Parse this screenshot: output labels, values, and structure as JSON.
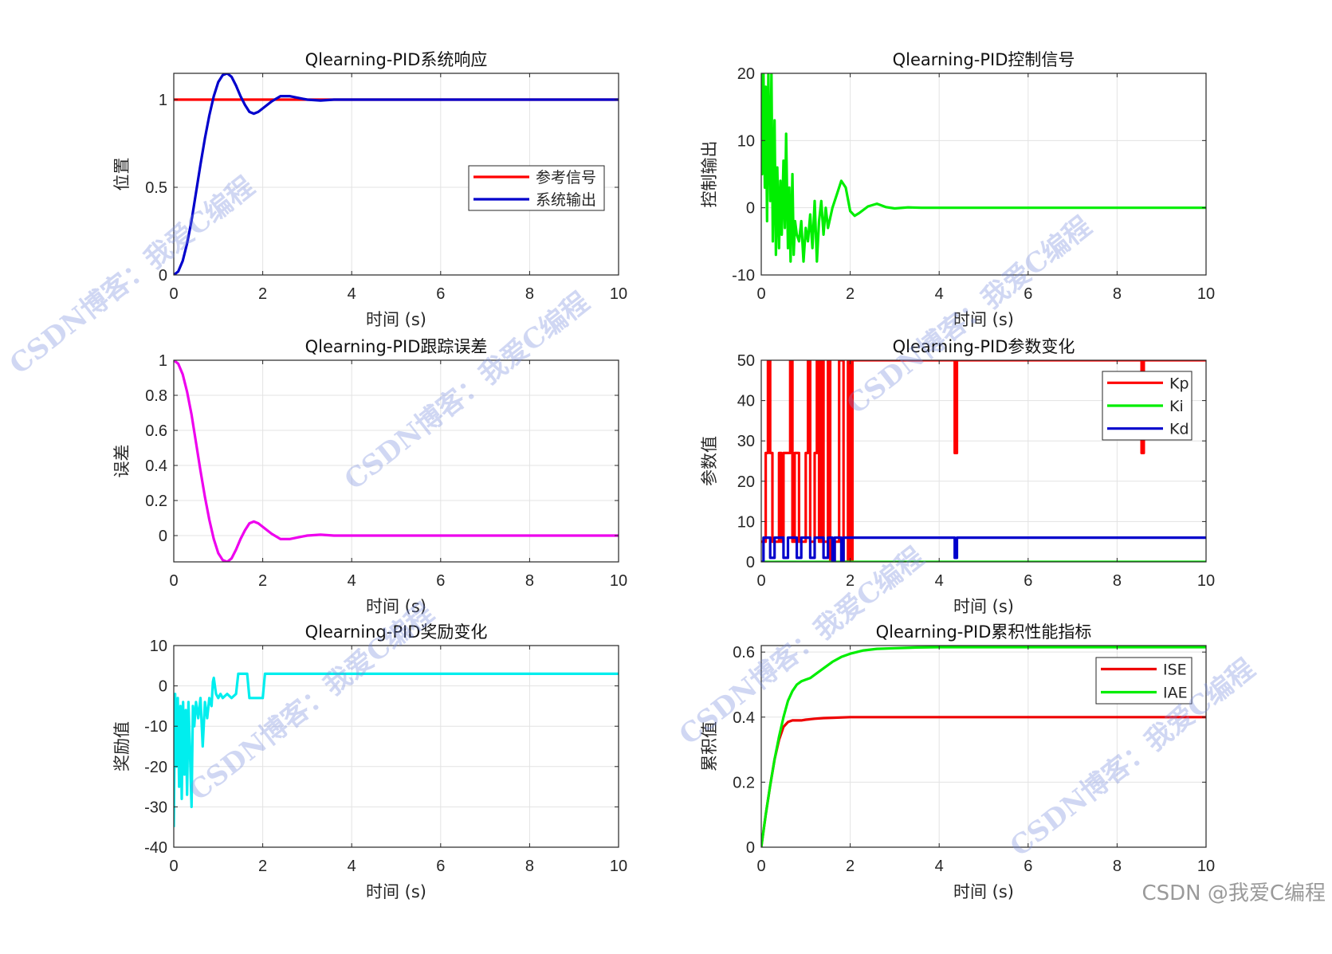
{
  "chart_data": [
    {
      "id": "response",
      "type": "line",
      "title": "Qlearning-PID系统响应",
      "xlabel": "时间 (s)",
      "ylabel": "位置",
      "xlim": [
        0,
        10
      ],
      "ylim": [
        0,
        1.15
      ],
      "xticks": [
        0,
        2,
        4,
        6,
        8,
        10
      ],
      "xtick_labels": [
        "0",
        "2",
        "4",
        "6",
        "8",
        "10"
      ],
      "yticks": [
        0,
        0.5,
        1
      ],
      "ytick_labels": [
        "0",
        "0.5",
        "1"
      ],
      "grid": true,
      "legend": {
        "placement": "center-right",
        "entries": [
          "参考信号",
          "系统输出"
        ]
      },
      "series": [
        {
          "name": "参考信号",
          "color": "#ff0000",
          "x": [
            0,
            10
          ],
          "y": [
            1,
            1
          ]
        },
        {
          "name": "系统输出",
          "color": "#0000cc",
          "x": [
            0,
            0.1,
            0.2,
            0.3,
            0.4,
            0.5,
            0.6,
            0.7,
            0.8,
            0.9,
            1.0,
            1.1,
            1.2,
            1.3,
            1.4,
            1.5,
            1.6,
            1.7,
            1.8,
            1.9,
            2.0,
            2.2,
            2.4,
            2.6,
            2.8,
            3.0,
            3.3,
            3.6,
            4.0,
            5,
            6,
            7,
            8,
            9,
            10
          ],
          "y": [
            0,
            0.02,
            0.08,
            0.18,
            0.31,
            0.47,
            0.63,
            0.78,
            0.91,
            1.02,
            1.1,
            1.14,
            1.15,
            1.13,
            1.08,
            1.02,
            0.97,
            0.93,
            0.92,
            0.93,
            0.95,
            0.99,
            1.02,
            1.02,
            1.01,
            1.0,
            0.995,
            1.0,
            1.0,
            1.0,
            1.0,
            1.0,
            1.0,
            1.0,
            1.0
          ]
        }
      ]
    },
    {
      "id": "control",
      "type": "line",
      "title": "Qlearning-PID控制信号",
      "xlabel": "时间 (s)",
      "ylabel": "控制输出",
      "xlim": [
        0,
        10
      ],
      "ylim": [
        -10,
        20
      ],
      "xticks": [
        0,
        2,
        4,
        6,
        8,
        10
      ],
      "xtick_labels": [
        "0",
        "2",
        "4",
        "6",
        "8",
        "10"
      ],
      "yticks": [
        -10,
        0,
        10,
        20
      ],
      "ytick_labels": [
        "-10",
        "0",
        "10",
        "20"
      ],
      "grid": true,
      "series": [
        {
          "name": "控制输出",
          "color": "#00ee00",
          "x": [
            0,
            0.02,
            0.05,
            0.08,
            0.1,
            0.13,
            0.16,
            0.2,
            0.23,
            0.26,
            0.3,
            0.33,
            0.36,
            0.4,
            0.43,
            0.46,
            0.5,
            0.53,
            0.56,
            0.6,
            0.63,
            0.66,
            0.7,
            0.73,
            0.76,
            0.8,
            0.85,
            0.9,
            0.95,
            1.0,
            1.05,
            1.1,
            1.15,
            1.2,
            1.25,
            1.3,
            1.35,
            1.4,
            1.45,
            1.5,
            1.6,
            1.7,
            1.8,
            1.9,
            2.0,
            2.1,
            2.2,
            2.4,
            2.6,
            2.8,
            3.0,
            3.3,
            3.6,
            4,
            5,
            6,
            7,
            8,
            9,
            10
          ],
          "y": [
            20,
            5,
            20,
            3,
            18,
            -2,
            20,
            1,
            20,
            -5,
            13,
            -7,
            6,
            -6,
            4,
            -4,
            7,
            -3,
            11,
            -6,
            3,
            -8,
            5,
            -7,
            -2,
            -4,
            -5,
            -2,
            -8,
            -3,
            -5,
            -1,
            -6,
            1,
            -8,
            -2,
            1,
            -4,
            0,
            -3,
            0,
            2,
            4,
            3,
            -0.5,
            -1.2,
            -0.8,
            0.2,
            0.6,
            0.1,
            -0.1,
            0.05,
            0,
            0,
            0,
            0,
            0,
            0,
            0,
            0
          ]
        }
      ]
    },
    {
      "id": "error",
      "type": "line",
      "title": "Qlearning-PID跟踪误差",
      "xlabel": "时间 (s)",
      "ylabel": "误差",
      "xlim": [
        0,
        10
      ],
      "ylim": [
        -0.15,
        1
      ],
      "xticks": [
        0,
        2,
        4,
        6,
        8,
        10
      ],
      "xtick_labels": [
        "0",
        "2",
        "4",
        "6",
        "8",
        "10"
      ],
      "yticks": [
        0,
        0.2,
        0.4,
        0.6,
        0.8,
        1
      ],
      "ytick_labels": [
        "0",
        "0.2",
        "0.4",
        "0.6",
        "0.8",
        "1"
      ],
      "grid": true,
      "series": [
        {
          "name": "误差",
          "color": "#ee00ee",
          "x": [
            0,
            0.1,
            0.2,
            0.3,
            0.4,
            0.5,
            0.6,
            0.7,
            0.8,
            0.9,
            1.0,
            1.1,
            1.2,
            1.3,
            1.4,
            1.5,
            1.6,
            1.7,
            1.8,
            1.9,
            2.0,
            2.2,
            2.4,
            2.6,
            2.8,
            3.0,
            3.3,
            3.6,
            4.0,
            5,
            6,
            7,
            8,
            9,
            10
          ],
          "y": [
            1,
            0.98,
            0.92,
            0.82,
            0.69,
            0.53,
            0.37,
            0.22,
            0.09,
            -0.02,
            -0.1,
            -0.14,
            -0.15,
            -0.13,
            -0.08,
            -0.02,
            0.03,
            0.07,
            0.08,
            0.07,
            0.05,
            0.01,
            -0.02,
            -0.02,
            -0.01,
            0.0,
            0.005,
            0.0,
            0.0,
            0.0,
            0.0,
            0.0,
            0.0,
            0.0,
            0.0
          ]
        }
      ]
    },
    {
      "id": "params",
      "type": "line",
      "title": "Qlearning-PID参数变化",
      "xlabel": "时间 (s)",
      "ylabel": "参数值",
      "xlim": [
        0,
        10
      ],
      "ylim": [
        0,
        50
      ],
      "xticks": [
        0,
        2,
        4,
        6,
        8,
        10
      ],
      "xtick_labels": [
        "0",
        "2",
        "4",
        "6",
        "8",
        "10"
      ],
      "yticks": [
        0,
        10,
        20,
        30,
        40,
        50
      ],
      "ytick_labels": [
        "0",
        "10",
        "20",
        "30",
        "40",
        "50"
      ],
      "grid": true,
      "legend": {
        "placement": "top-right",
        "entries": [
          "Kp",
          "Ki",
          "Kd"
        ]
      },
      "series": [
        {
          "name": "Kp",
          "color": "#ff0000",
          "x": [
            0,
            0.1,
            0.1,
            0.15,
            0.15,
            0.2,
            0.2,
            0.25,
            0.25,
            0.4,
            0.4,
            0.45,
            0.45,
            0.5,
            0.5,
            0.65,
            0.65,
            0.7,
            0.7,
            0.75,
            0.75,
            0.85,
            0.85,
            1.0,
            1.0,
            1.05,
            1.05,
            1.1,
            1.1,
            1.2,
            1.2,
            1.25,
            1.25,
            1.3,
            1.3,
            1.35,
            1.35,
            1.4,
            1.4,
            1.5,
            1.5,
            1.55,
            1.55,
            1.65,
            1.65,
            1.75,
            1.75,
            1.85,
            1.85,
            1.95,
            1.95,
            2.0,
            2.0,
            2.05,
            2.05,
            4.35,
            4.35,
            4.4,
            4.4,
            8.55,
            8.55,
            8.6,
            8.6,
            10
          ],
          "y": [
            5,
            5,
            27,
            27,
            50,
            50,
            27,
            27,
            5,
            5,
            27,
            27,
            5,
            5,
            27,
            27,
            50,
            50,
            5,
            5,
            27,
            27,
            5,
            5,
            27,
            27,
            50,
            50,
            5,
            5,
            27,
            27,
            50,
            50,
            5,
            5,
            50,
            50,
            5,
            5,
            50,
            50,
            0,
            0,
            5,
            5,
            50,
            50,
            0,
            0,
            50,
            50,
            0,
            0,
            50,
            50,
            27,
            27,
            50,
            50,
            27,
            27,
            50,
            50
          ]
        },
        {
          "name": "Ki",
          "color": "#00ee00",
          "x": [
            0,
            10
          ],
          "y": [
            0,
            0
          ]
        },
        {
          "name": "Kd",
          "color": "#0000cc",
          "x": [
            0,
            0.05,
            0.05,
            0.2,
            0.2,
            0.3,
            0.3,
            0.5,
            0.5,
            0.6,
            0.6,
            0.8,
            0.8,
            0.9,
            0.9,
            1.1,
            1.1,
            1.2,
            1.2,
            1.4,
            1.4,
            1.5,
            1.5,
            1.6,
            1.6,
            1.65,
            1.65,
            1.8,
            1.8,
            1.85,
            1.85,
            2.0,
            2.0,
            4.35,
            4.35,
            4.4,
            4.4,
            10
          ],
          "y": [
            0,
            0,
            6,
            6,
            1,
            1,
            6,
            6,
            1,
            1,
            6,
            6,
            1,
            1,
            6,
            6,
            1,
            1,
            6,
            6,
            1,
            1,
            6,
            6,
            0,
            0,
            6,
            6,
            0,
            0,
            6,
            6,
            6,
            6,
            1,
            1,
            6,
            6
          ]
        }
      ]
    },
    {
      "id": "reward",
      "type": "line",
      "title": "Qlearning-PID奖励变化",
      "xlabel": "时间 (s)",
      "ylabel": "奖励值",
      "xlim": [
        0,
        10
      ],
      "ylim": [
        -40,
        10
      ],
      "xticks": [
        0,
        2,
        4,
        6,
        8,
        10
      ],
      "xtick_labels": [
        "0",
        "2",
        "4",
        "6",
        "8",
        "10"
      ],
      "yticks": [
        -40,
        -30,
        -20,
        -10,
        0,
        10
      ],
      "ytick_labels": [
        "-40",
        "-30",
        "-20",
        "-10",
        "0",
        "10"
      ],
      "grid": true,
      "series": [
        {
          "name": "奖励值",
          "color": "#00eeee",
          "x": [
            0,
            0.03,
            0.06,
            0.09,
            0.12,
            0.15,
            0.18,
            0.21,
            0.24,
            0.27,
            0.3,
            0.33,
            0.36,
            0.4,
            0.43,
            0.46,
            0.5,
            0.55,
            0.6,
            0.65,
            0.7,
            0.75,
            0.8,
            0.85,
            0.88,
            0.9,
            0.95,
            1.0,
            1.05,
            1.1,
            1.2,
            1.3,
            1.4,
            1.45,
            1.5,
            1.55,
            1.6,
            1.65,
            1.7,
            1.75,
            1.8,
            2.0,
            2.05,
            2.1,
            10
          ],
          "y": [
            -35,
            -2,
            -20,
            -3,
            -25,
            -5,
            -28,
            -4,
            -22,
            -6,
            -27,
            -4,
            -15,
            -30,
            -5,
            -10,
            -4,
            -8,
            -3,
            -15,
            -4,
            -8,
            -3,
            -5,
            1,
            2,
            -2,
            -3,
            -2,
            -3,
            -2,
            -3,
            -2,
            3,
            3,
            3,
            3,
            3,
            -3,
            -3,
            -3,
            -3,
            3,
            3,
            3
          ]
        }
      ]
    },
    {
      "id": "cumulative",
      "type": "line",
      "title": "Qlearning-PID累积性能指标",
      "xlabel": "时间 (s)",
      "ylabel": "累积值",
      "xlim": [
        0,
        10
      ],
      "ylim": [
        0,
        0.62
      ],
      "xticks": [
        0,
        2,
        4,
        6,
        8,
        10
      ],
      "xtick_labels": [
        "0",
        "2",
        "4",
        "6",
        "8",
        "10"
      ],
      "yticks": [
        0,
        0.2,
        0.4,
        0.6
      ],
      "ytick_labels": [
        "0",
        "0.2",
        "0.4",
        "0.6"
      ],
      "grid": true,
      "legend": {
        "placement": "top-right",
        "entries": [
          "ISE",
          "IAE"
        ]
      },
      "series": [
        {
          "name": "ISE",
          "color": "#ee0000",
          "x": [
            0,
            0.1,
            0.2,
            0.3,
            0.4,
            0.5,
            0.6,
            0.7,
            0.8,
            0.9,
            1.0,
            1.2,
            1.4,
            1.6,
            2.0,
            3,
            4,
            6,
            8,
            10
          ],
          "y": [
            0,
            0.1,
            0.19,
            0.27,
            0.33,
            0.37,
            0.385,
            0.39,
            0.39,
            0.39,
            0.392,
            0.395,
            0.397,
            0.398,
            0.4,
            0.4,
            0.4,
            0.4,
            0.4,
            0.4
          ]
        },
        {
          "name": "IAE",
          "color": "#00ee00",
          "x": [
            0,
            0.1,
            0.2,
            0.3,
            0.4,
            0.5,
            0.6,
            0.7,
            0.8,
            0.9,
            1.0,
            1.1,
            1.2,
            1.4,
            1.6,
            1.8,
            2.0,
            2.3,
            2.6,
            3.0,
            3.5,
            4,
            6,
            8,
            10
          ],
          "y": [
            0,
            0.1,
            0.19,
            0.27,
            0.34,
            0.4,
            0.45,
            0.48,
            0.5,
            0.51,
            0.515,
            0.52,
            0.53,
            0.55,
            0.57,
            0.585,
            0.595,
            0.605,
            0.61,
            0.612,
            0.614,
            0.615,
            0.615,
            0.615,
            0.615
          ]
        }
      ]
    }
  ],
  "watermarks": [
    {
      "text": "CSDN博客：我爱C编程"
    },
    {
      "text": "CSDN博客：我爱C编程"
    },
    {
      "text": "CSDN博客：我爱C编程"
    },
    {
      "text": "CSDN博客：我爱C编程"
    },
    {
      "text": "CSDN博客：我爱C编程"
    },
    {
      "text": "CSDN博客：我爱C编程"
    }
  ],
  "footer": {
    "credit": "CSDN @我爱C编程"
  }
}
